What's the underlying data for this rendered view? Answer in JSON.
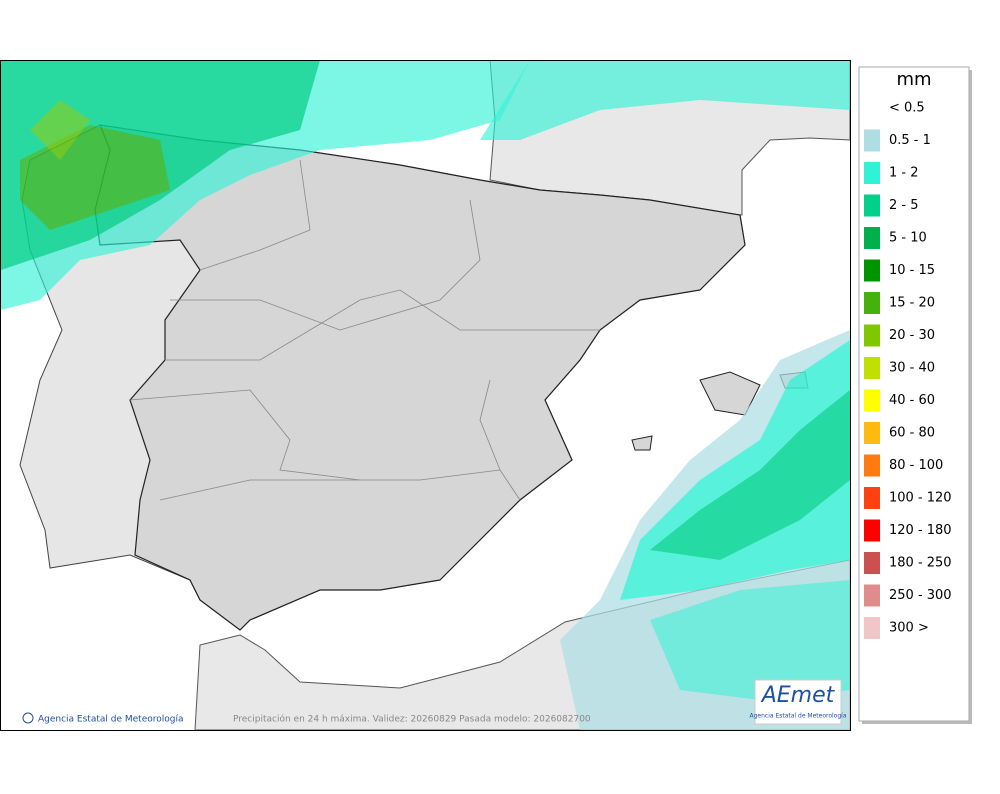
{
  "legend": {
    "title": "mm",
    "items": [
      {
        "label": "< 0.5",
        "color": "#ffffff"
      },
      {
        "label": "0.5 - 1",
        "color": "#aedde3"
      },
      {
        "label": "1 - 2",
        "color": "#2ff2d6"
      },
      {
        "label": "2 - 5",
        "color": "#00d08a"
      },
      {
        "label": "5 - 10",
        "color": "#00b04c"
      },
      {
        "label": "10 - 15",
        "color": "#009400"
      },
      {
        "label": "15 - 20",
        "color": "#44b10c"
      },
      {
        "label": "20 - 30",
        "color": "#7fc800"
      },
      {
        "label": "30 - 40",
        "color": "#bfe000"
      },
      {
        "label": "40 - 60",
        "color": "#ffff00"
      },
      {
        "label": "60 - 80",
        "color": "#ffba10"
      },
      {
        "label": "80 - 100",
        "color": "#ff7a10"
      },
      {
        "label": "100 - 120",
        "color": "#ff4010"
      },
      {
        "label": "120 - 180",
        "color": "#ff0000"
      },
      {
        "label": "180 - 250",
        "color": "#cc5050"
      },
      {
        "label": "250 - 300",
        "color": "#de8c8c"
      },
      {
        "label": "300 >",
        "color": "#f0c6c6"
      }
    ]
  },
  "footer": {
    "credit": "Agencia Estatal de Meteorología",
    "caption": "Precipitación en 24 h máxima. Validez: 20260829 Pasada modelo: 2026082700"
  },
  "logo": {
    "name": "AEmet",
    "subtitle": "Agencia Estatal de Meteorología"
  }
}
